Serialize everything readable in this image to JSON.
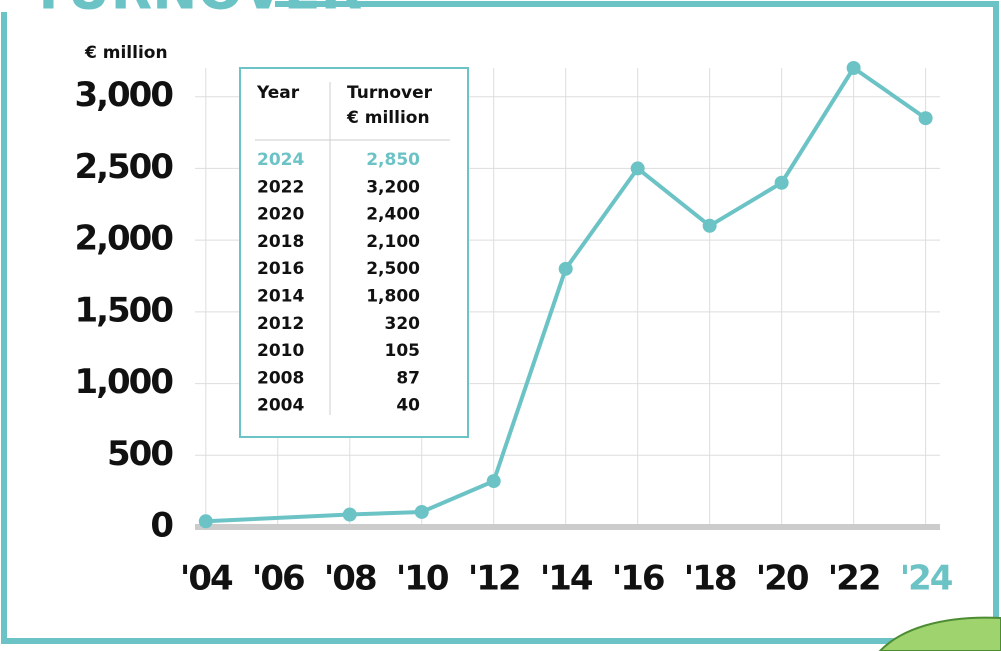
{
  "chart_data": {
    "type": "line",
    "title": "TURNOVER",
    "y_label": "€ million",
    "x": [
      2004,
      2008,
      2010,
      2012,
      2014,
      2016,
      2018,
      2020,
      2022,
      2024
    ],
    "series": [
      {
        "name": "Turnover",
        "color": "#6cc3c6",
        "values": [
          40,
          87,
          105,
          320,
          1800,
          2500,
          2100,
          2400,
          3200,
          2850
        ]
      }
    ],
    "xlim": [
      2003.7,
      2024.4
    ],
    "ylim": [
      0,
      3200
    ],
    "xticks": [
      {
        "value": 2004,
        "label": "'04"
      },
      {
        "value": 2006,
        "label": "'06"
      },
      {
        "value": 2008,
        "label": "'08"
      },
      {
        "value": 2010,
        "label": "'10"
      },
      {
        "value": 2012,
        "label": "'12"
      },
      {
        "value": 2014,
        "label": "'14"
      },
      {
        "value": 2016,
        "label": "'16"
      },
      {
        "value": 2018,
        "label": "'18"
      },
      {
        "value": 2020,
        "label": "'20"
      },
      {
        "value": 2022,
        "label": "'22"
      },
      {
        "value": 2024,
        "label": "'24"
      }
    ],
    "yticks": [
      0,
      500,
      {
        "value": 1000,
        "label": "1,000"
      },
      {
        "value": 1500,
        "label": "1,500"
      },
      {
        "value": 2000,
        "label": "2,000"
      },
      {
        "value": 2500,
        "label": "2,500"
      },
      {
        "value": 3000,
        "label": "3,000"
      }
    ],
    "grid": true,
    "highlight_color": "#6cc3c6"
  },
  "table": {
    "columns": [
      "Year",
      "Turnover"
    ],
    "unit": "€ million",
    "rows": [
      [
        "2024",
        "2,850"
      ],
      [
        "2022",
        "3,200"
      ],
      [
        "2020",
        "2,400"
      ],
      [
        "2018",
        "2,100"
      ],
      [
        "2016",
        "2,500"
      ],
      [
        "2014",
        "1,800"
      ],
      [
        "2012",
        "320"
      ],
      [
        "2010",
        "105"
      ],
      [
        "2008",
        "87"
      ],
      [
        "2004",
        "40"
      ]
    ]
  }
}
